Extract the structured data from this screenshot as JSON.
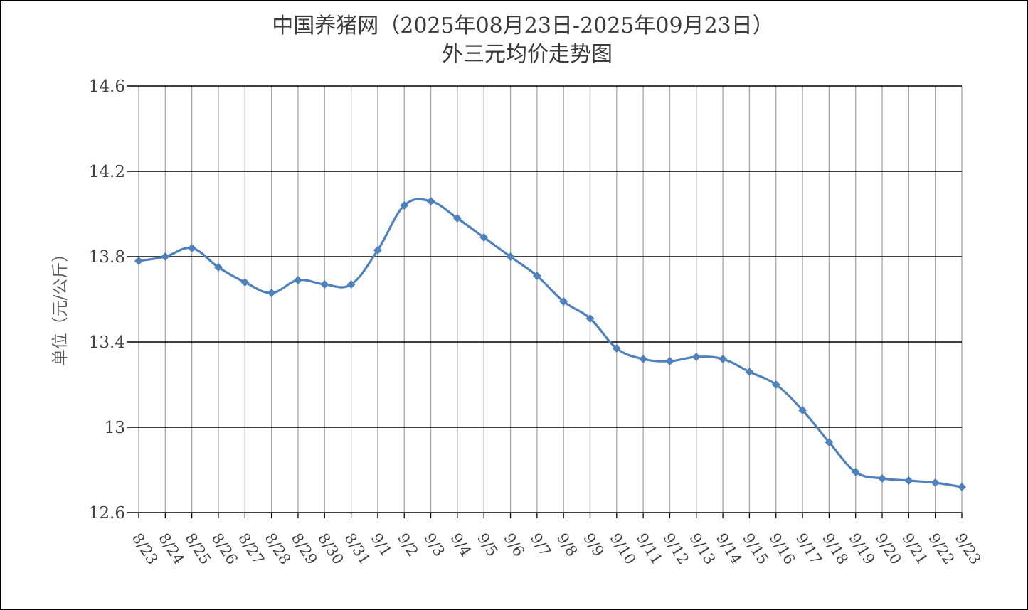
{
  "chart_data": {
    "type": "line",
    "title": "中国养猪网（2025年08月23日-2025年09月23日）",
    "subtitle": "外三元均价走势图",
    "xlabel": "",
    "ylabel": "单位（元/公斤）",
    "ylim": [
      12.6,
      14.6
    ],
    "yticks": [
      "12.6",
      "13",
      "13.4",
      "13.8",
      "14.2",
      "14.6"
    ],
    "ytick_values": [
      12.6,
      13.0,
      13.4,
      13.8,
      14.2,
      14.6
    ],
    "categories": [
      "8/23",
      "8/24",
      "8/25",
      "8/26",
      "8/27",
      "8/28",
      "8/29",
      "8/30",
      "8/31",
      "9/1",
      "9/2",
      "9/3",
      "9/4",
      "9/5",
      "9/6",
      "9/7",
      "9/8",
      "9/9",
      "9/10",
      "9/11",
      "9/12",
      "9/13",
      "9/14",
      "9/15",
      "9/16",
      "9/17",
      "9/18",
      "9/19",
      "9/20",
      "9/21",
      "9/22",
      "9/23"
    ],
    "series": [
      {
        "values": [
          13.78,
          13.8,
          13.84,
          13.75,
          13.68,
          13.63,
          13.69,
          13.67,
          13.67,
          13.83,
          14.04,
          14.06,
          13.98,
          13.89,
          13.8,
          13.71,
          13.59,
          13.51,
          13.37,
          13.32,
          13.31,
          13.33,
          13.32,
          13.26,
          13.2,
          13.08,
          12.93,
          12.79,
          12.76,
          12.75,
          12.74,
          12.72
        ],
        "color": "#4f81bd",
        "marker": "diamond"
      }
    ],
    "grid": true,
    "legend": "none"
  }
}
